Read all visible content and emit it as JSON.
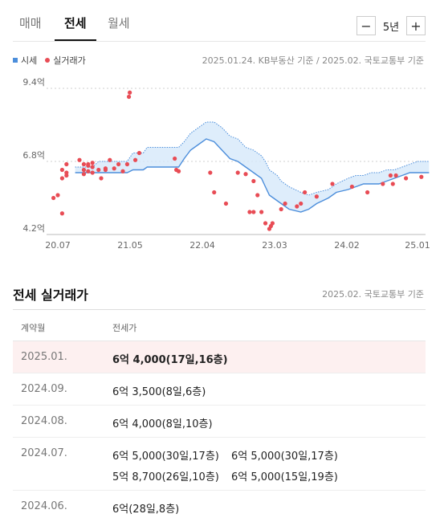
{
  "tabs": [
    {
      "label": "매매",
      "active": false
    },
    {
      "label": "전세",
      "active": true
    },
    {
      "label": "월세",
      "active": false
    }
  ],
  "period": {
    "minus": "−",
    "value": "5년",
    "plus": "+"
  },
  "legend": {
    "price": "시세",
    "deal": "실거래가"
  },
  "chart_source": "2025.01.24. KB부동산 기준 / 2025.02. 국토교통부 기준",
  "chart_data": {
    "type": "scatter",
    "title": "",
    "xlabel": "",
    "ylabel": "",
    "x_ticks": [
      "20.07",
      "21.05",
      "22.04",
      "23.03",
      "24.02",
      "25.01"
    ],
    "y_ticks": [
      "9.4억",
      "6.8억",
      "4.2억"
    ],
    "ylim": [
      4.2,
      9.4
    ],
    "colors": {
      "band_fill": "#d6e8fa",
      "band_line": "#4c8edb",
      "deal": "#e84c55"
    },
    "series": [
      {
        "name": "시세",
        "kind": "band",
        "x": [
          2020.7,
          2020.9,
          2020.97,
          2021.3,
          2021.37,
          2021.5,
          2021.55,
          2021.7,
          2021.95,
          2022.02,
          2022.1,
          2022.2,
          2022.3,
          2022.4,
          2022.5,
          2022.6,
          2022.7,
          2022.8,
          2022.9,
          2023.0,
          2023.05,
          2023.1,
          2023.2,
          2023.25,
          2023.35,
          2023.5,
          2023.6,
          2023.7,
          2023.85,
          2023.95,
          2024.1,
          2024.2,
          2024.3,
          2024.4,
          2024.5,
          2024.6,
          2024.7,
          2024.8,
          2024.9,
          2025.0,
          2025.15
        ],
        "upper": [
          6.6,
          6.6,
          6.8,
          6.8,
          7.1,
          7.1,
          7.3,
          7.3,
          7.3,
          7.5,
          7.8,
          8.0,
          8.2,
          8.2,
          8.0,
          7.7,
          7.6,
          7.3,
          7.2,
          7.0,
          6.8,
          6.5,
          6.3,
          6.1,
          5.9,
          5.7,
          5.6,
          5.7,
          5.8,
          6.0,
          6.2,
          6.3,
          6.3,
          6.4,
          6.4,
          6.5,
          6.5,
          6.6,
          6.7,
          6.8,
          6.8
        ],
        "lower": [
          6.4,
          6.4,
          6.4,
          6.4,
          6.5,
          6.5,
          6.6,
          6.6,
          6.6,
          6.9,
          7.2,
          7.4,
          7.6,
          7.5,
          7.2,
          6.9,
          6.8,
          6.6,
          6.4,
          6.2,
          5.9,
          5.6,
          5.4,
          5.3,
          5.1,
          5.0,
          5.1,
          5.3,
          5.5,
          5.7,
          5.8,
          5.9,
          6.0,
          6.0,
          6.0,
          6.1,
          6.2,
          6.3,
          6.4,
          6.4,
          6.4
        ]
      },
      {
        "name": "실거래가",
        "kind": "points",
        "x": [
          2020.45,
          2020.5,
          2020.55,
          2020.55,
          2020.55,
          2020.6,
          2020.6,
          2020.6,
          2020.75,
          2020.8,
          2020.8,
          2020.8,
          2020.85,
          2020.85,
          2020.85,
          2020.9,
          2020.9,
          2020.9,
          2020.97,
          2021.0,
          2021.05,
          2021.05,
          2021.1,
          2021.15,
          2021.2,
          2021.25,
          2021.3,
          2021.32,
          2021.33,
          2021.4,
          2021.45,
          2021.9,
          2021.92,
          2021.95,
          2022.35,
          2022.4,
          2022.55,
          2022.7,
          2022.8,
          2022.85,
          2022.9,
          2022.9,
          2022.95,
          2023.0,
          2023.05,
          2023.1,
          2023.12,
          2023.14,
          2023.25,
          2023.3,
          2023.45,
          2023.5,
          2023.55,
          2023.7,
          2023.9,
          2024.15,
          2024.35,
          2024.55,
          2024.65,
          2024.68,
          2024.72,
          2024.85,
          2025.05
        ],
        "y": [
          5.5,
          5.6,
          4.95,
          6.2,
          6.5,
          6.7,
          6.3,
          6.4,
          6.85,
          6.7,
          6.5,
          6.35,
          6.7,
          6.65,
          6.45,
          6.4,
          6.6,
          6.75,
          6.5,
          6.2,
          6.5,
          6.55,
          6.85,
          6.55,
          6.7,
          6.45,
          6.7,
          9.1,
          9.25,
          6.85,
          7.1,
          6.9,
          6.5,
          6.45,
          6.4,
          5.7,
          5.3,
          6.4,
          6.35,
          5.0,
          5.0,
          6.1,
          5.6,
          5.0,
          4.6,
          4.4,
          4.5,
          4.6,
          5.1,
          5.3,
          5.2,
          5.3,
          5.7,
          5.55,
          6.0,
          5.9,
          5.7,
          6.0,
          6.3,
          6.0,
          6.3,
          6.2,
          6.25
        ]
      }
    ]
  },
  "section": {
    "title": "전세 실거래가",
    "source": "2025.02. 국토교통부 기준"
  },
  "table": {
    "headers": [
      "계약월",
      "전세가"
    ],
    "rows": [
      {
        "date": "2025.01.",
        "highlight": true,
        "values": [
          "6억 4,000(17일,16층)"
        ]
      },
      {
        "date": "2024.09.",
        "highlight": false,
        "values": [
          "6억 3,500(8일,6층)"
        ]
      },
      {
        "date": "2024.08.",
        "highlight": false,
        "values": [
          "6억 4,000(8일,10층)"
        ]
      },
      {
        "date": "2024.07.",
        "highlight": false,
        "values": [
          "6억 5,000(30일,17층)",
          "6억 5,000(30일,17층)",
          "5억 8,700(26일,10층)",
          "6억 5,000(15일,19층)"
        ]
      },
      {
        "date": "2024.06.",
        "highlight": false,
        "values": [
          "6억(28일,8층)"
        ]
      }
    ]
  }
}
